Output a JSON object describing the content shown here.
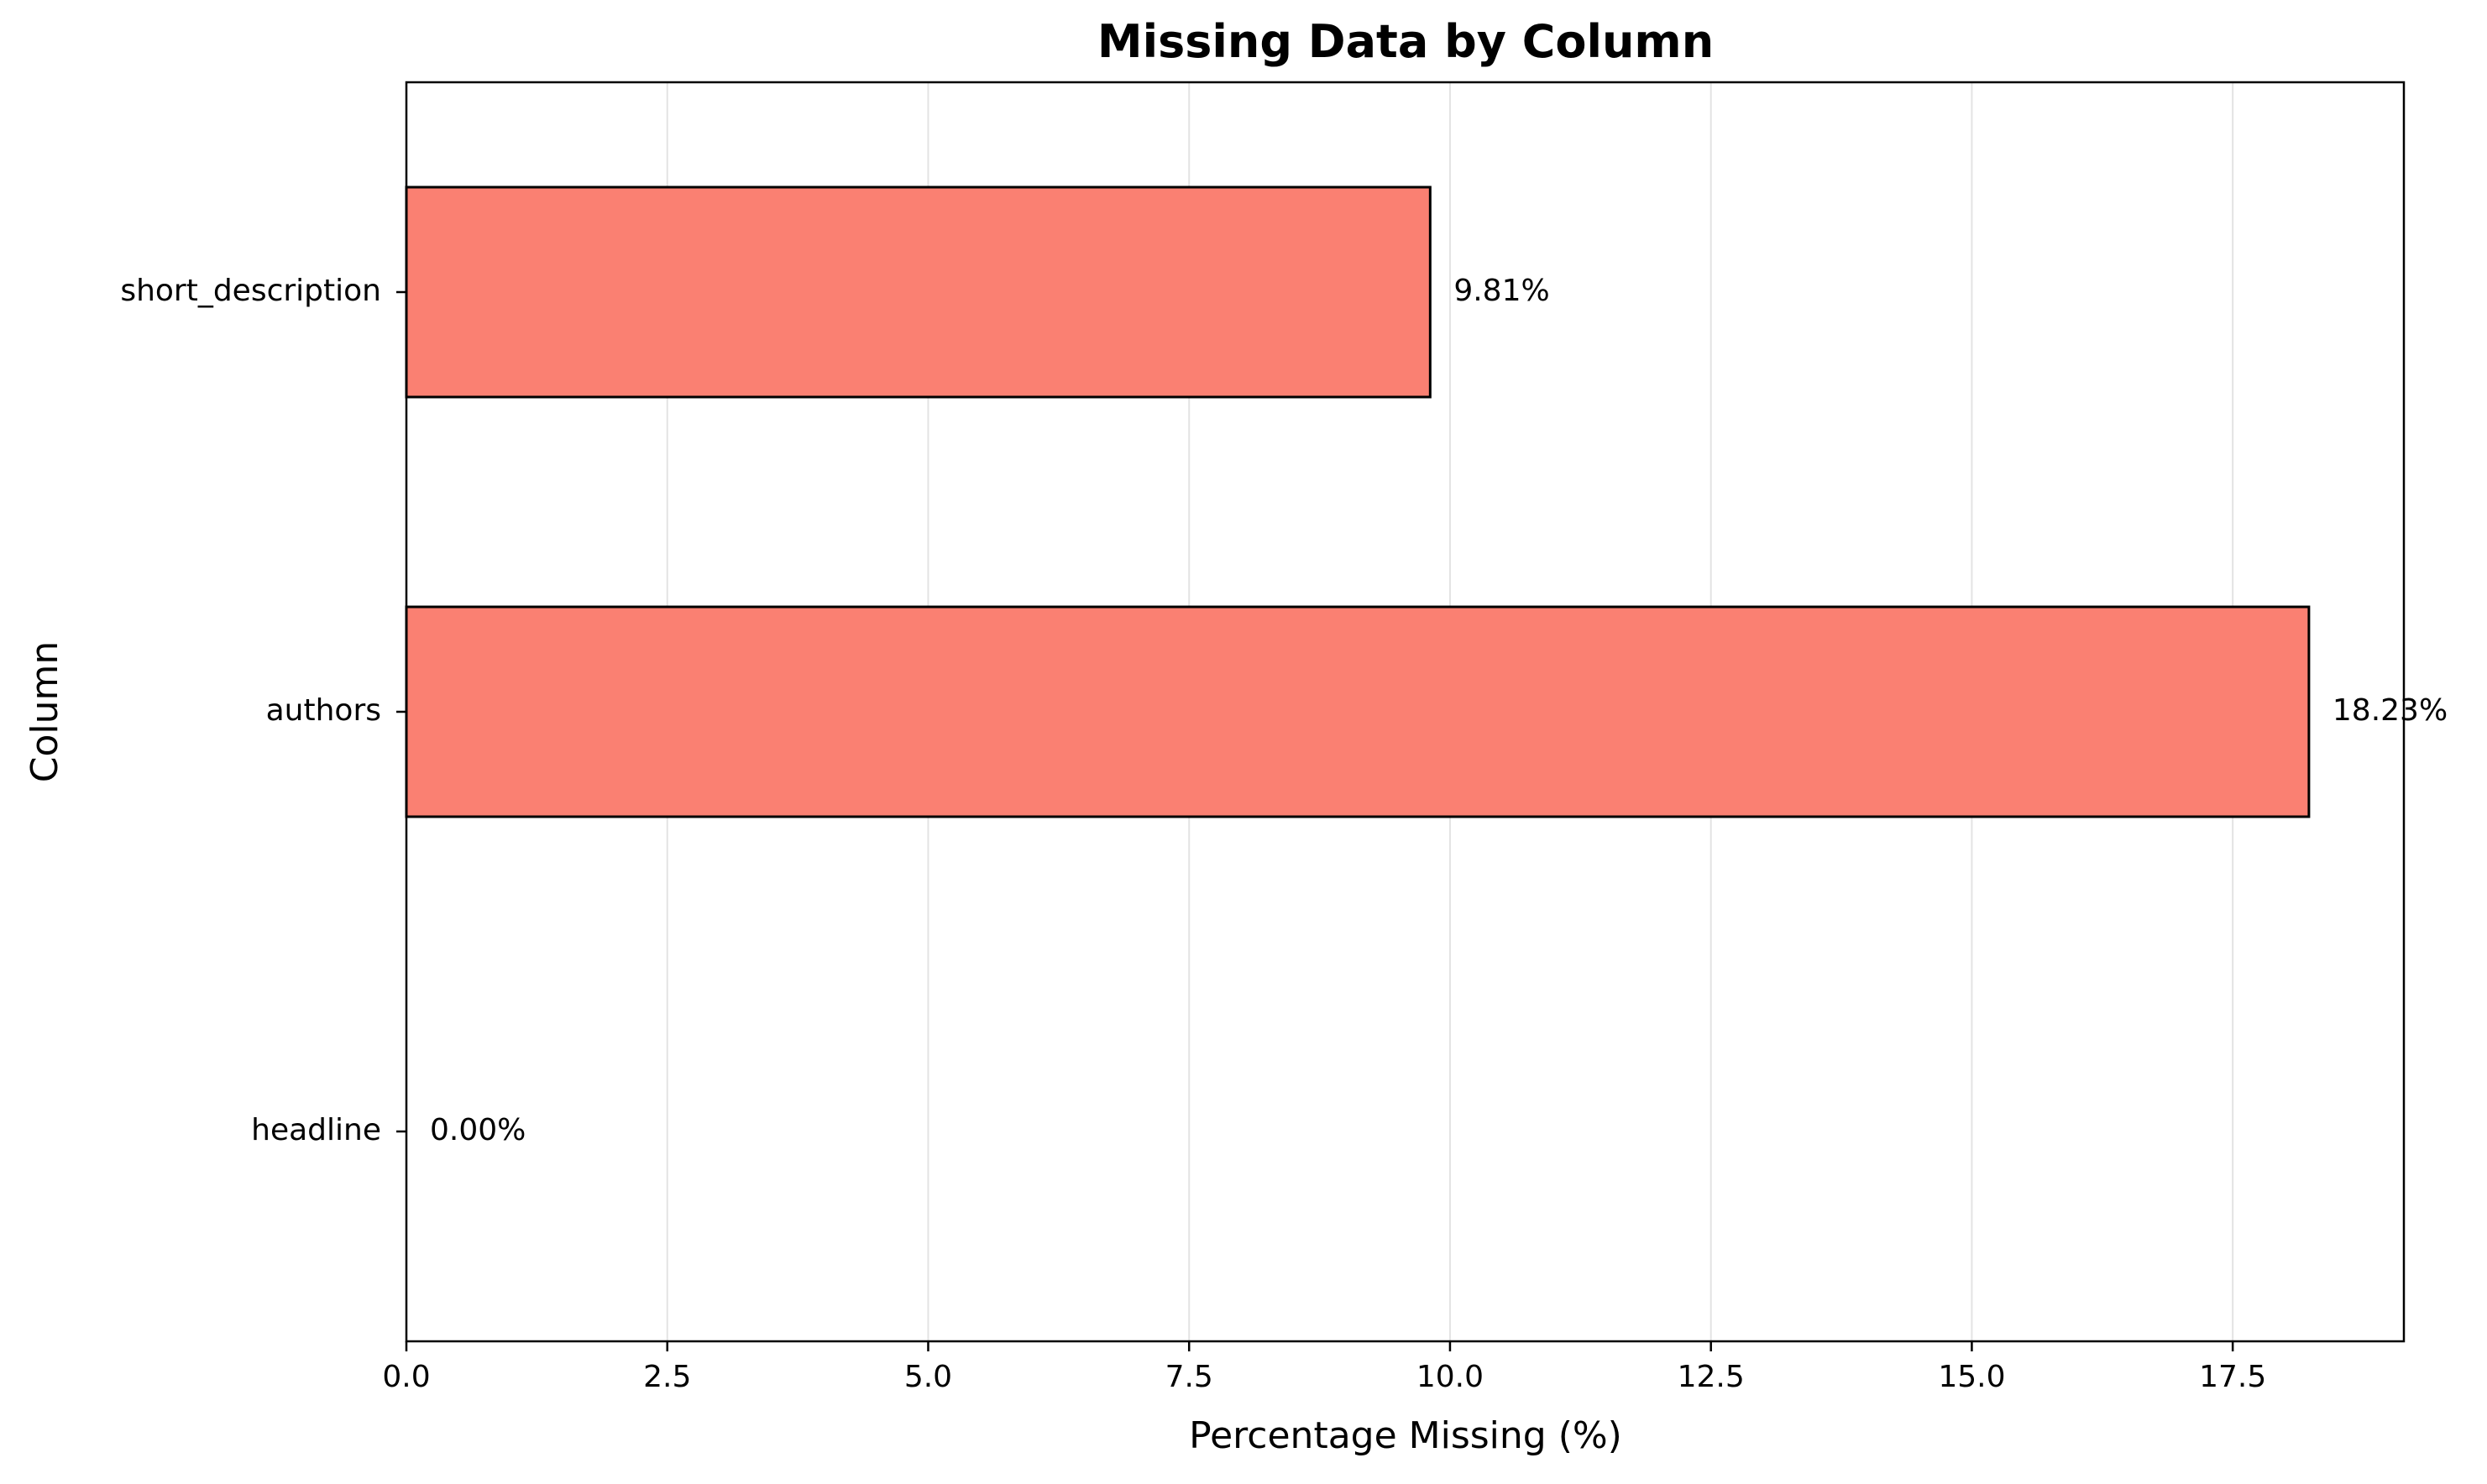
{
  "chart_data": {
    "type": "bar",
    "orientation": "horizontal",
    "title": "Missing Data by Column",
    "xlabel": "Percentage Missing (%)",
    "ylabel": "Column",
    "categories": [
      "short_description",
      "authors",
      "headline"
    ],
    "values": [
      9.81,
      18.23,
      0.0
    ],
    "value_labels": [
      "9.81%",
      "18.23%",
      "0.00%"
    ],
    "xlim": [
      0,
      19.14
    ],
    "xticks": [
      0.0,
      2.5,
      5.0,
      7.5,
      10.0,
      12.5,
      15.0,
      17.5
    ],
    "xtick_labels": [
      "0.0",
      "2.5",
      "5.0",
      "7.5",
      "10.0",
      "12.5",
      "15.0",
      "17.5"
    ],
    "grid": "x",
    "legend": "none",
    "colors": {
      "bar_fill": "#fa8072",
      "bar_edge": "#000000",
      "grid": "#e3e3e3",
      "axes": "#000000"
    }
  }
}
